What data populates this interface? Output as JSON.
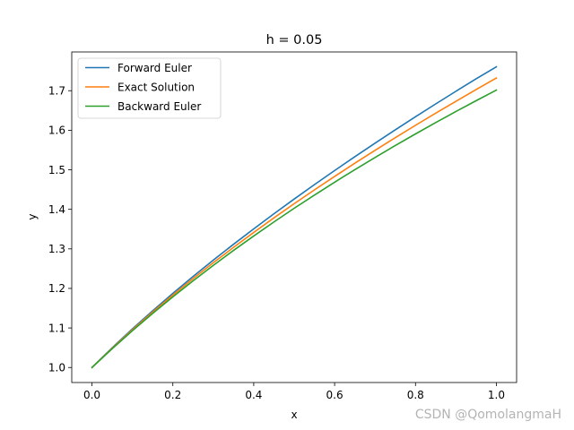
{
  "chart_data": {
    "type": "line",
    "title": "h = 0.05",
    "xlabel": "x",
    "ylabel": "y",
    "xlim": [
      -0.05,
      1.05
    ],
    "ylim": [
      0.962,
      1.798
    ],
    "xticks": [
      0.0,
      0.2,
      0.4,
      0.6,
      0.8,
      1.0
    ],
    "xtick_labels": [
      "0.0",
      "0.2",
      "0.4",
      "0.6",
      "0.8",
      "1.0"
    ],
    "yticks": [
      1.0,
      1.1,
      1.2,
      1.3,
      1.4,
      1.5,
      1.6,
      1.7
    ],
    "ytick_labels": [
      "1.0",
      "1.1",
      "1.2",
      "1.3",
      "1.4",
      "1.5",
      "1.6",
      "1.7"
    ],
    "grid": false,
    "legend_position": "top-left",
    "x": [
      0.0,
      0.05,
      0.1,
      0.15,
      0.2,
      0.25,
      0.3,
      0.35,
      0.4,
      0.45,
      0.5,
      0.55,
      0.6,
      0.65,
      0.7,
      0.75,
      0.8,
      0.85,
      0.9,
      0.95,
      1.0
    ],
    "series": [
      {
        "name": "Forward Euler",
        "color": "#1f77b4",
        "values": [
          1.0,
          1.05,
          1.0977,
          1.1434,
          1.1876,
          1.2302,
          1.2715,
          1.3116,
          1.3506,
          1.3887,
          1.426,
          1.4624,
          1.4981,
          1.533,
          1.5673,
          1.601,
          1.6341,
          1.6666,
          1.6986,
          1.7301,
          1.7603
        ]
      },
      {
        "name": "Exact Solution",
        "color": "#ff7f0e",
        "values": [
          1.0,
          1.0488,
          1.0954,
          1.1402,
          1.1832,
          1.2247,
          1.2649,
          1.3038,
          1.3416,
          1.3784,
          1.4142,
          1.4491,
          1.4832,
          1.5166,
          1.5492,
          1.5811,
          1.6125,
          1.6432,
          1.6733,
          1.7029,
          1.7321
        ]
      },
      {
        "name": "Backward Euler",
        "color": "#2ca02c",
        "values": [
          1.0,
          1.0475,
          1.093,
          1.1367,
          1.1787,
          1.2192,
          1.2583,
          1.296,
          1.3326,
          1.3681,
          1.4026,
          1.436,
          1.4686,
          1.5003,
          1.5312,
          1.5613,
          1.5907,
          1.6194,
          1.6474,
          1.6748,
          1.7016
        ]
      }
    ]
  },
  "watermark": "CSDN @QomolangmaH"
}
